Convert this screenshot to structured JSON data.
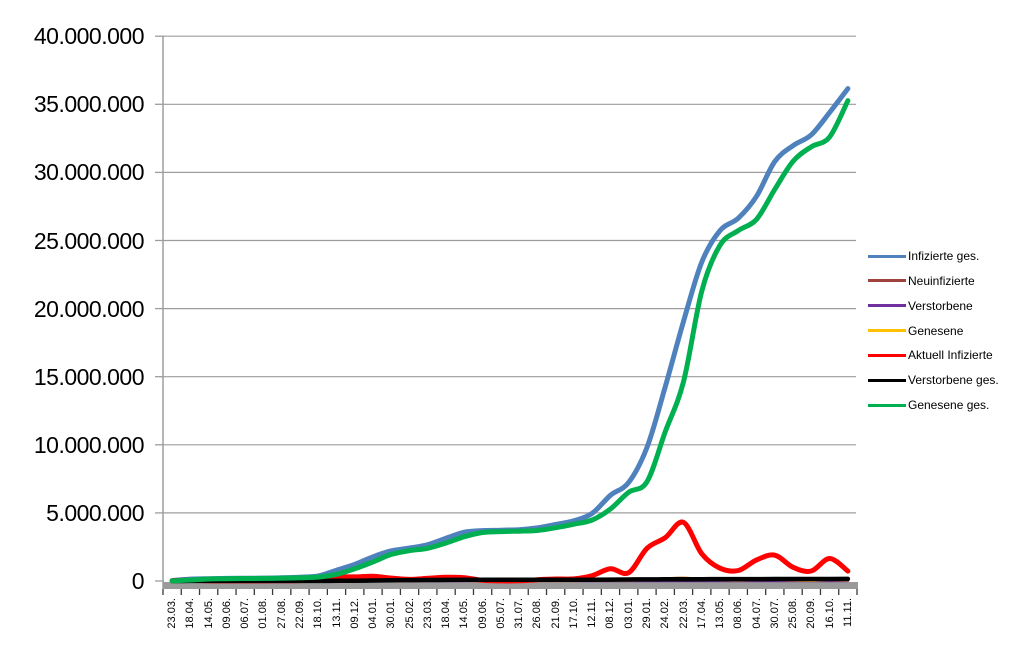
{
  "chart_data": {
    "type": "line",
    "title": "",
    "grid": true,
    "legend_position": "right",
    "categories": [
      "23.03.",
      "18.04.",
      "14.05.",
      "09.06.",
      "06.07.",
      "01.08.",
      "27.08.",
      "22.09.",
      "18.10.",
      "13.11.",
      "09.12.",
      "04.01.",
      "30.01.",
      "25.02.",
      "23.03.",
      "18.04.",
      "14.05.",
      "09.06.",
      "05.07.",
      "31.07.",
      "26.08.",
      "21.09.",
      "17.10.",
      "12.11.",
      "08.12.",
      "03.01.",
      "29.01.",
      "24.02.",
      "22.03.",
      "17.04.",
      "13.05.",
      "08.06.",
      "04.07.",
      "30.07.",
      "25.08.",
      "20.09.",
      "16.10.",
      "11.11."
    ],
    "y_axis": {
      "min": 0,
      "max": 40000000,
      "step": 5000000,
      "tick_labels": [
        "40.000.000",
        "35.000.000",
        "30.000.000",
        "25.000.000",
        "20.000.000",
        "15.000.000",
        "10.000.000",
        "5.000.000",
        "0"
      ]
    },
    "series": [
      {
        "name": "Infizierte ges.",
        "color": "#4F81BD",
        "stroke_width": 5,
        "values": [
          30000,
          140000,
          170000,
          190000,
          200000,
          210000,
          240000,
          280000,
          370000,
          790000,
          1220000,
          1780000,
          2220000,
          2420000,
          2670000,
          3140000,
          3580000,
          3700000,
          3730000,
          3770000,
          3900000,
          4150000,
          4420000,
          4970000,
          6290000,
          7240000,
          9810000,
          14250000,
          19060000,
          23420000,
          25730000,
          26640000,
          28250000,
          30800000,
          31970000,
          32760000,
          34400000,
          36150000
        ]
      },
      {
        "name": "Neuinfizierte",
        "color": "#A0423D",
        "stroke_width": 2.5,
        "values": [
          4000,
          2500,
          900,
          400,
          400,
          700,
          1400,
          1800,
          7000,
          18000,
          22000,
          18000,
          12000,
          8000,
          16000,
          21000,
          9000,
          2000,
          600,
          1500,
          9000,
          8000,
          9000,
          37000,
          50000,
          30000,
          120000,
          180000,
          230000,
          110000,
          60000,
          40000,
          90000,
          80000,
          40000,
          40000,
          90000,
          40000
        ]
      },
      {
        "name": "Verstorbene",
        "color": "#7030A0",
        "stroke_width": 2.5,
        "values": [
          50,
          200,
          100,
          40,
          10,
          10,
          10,
          10,
          30,
          150,
          400,
          700,
          800,
          400,
          200,
          250,
          200,
          100,
          30,
          20,
          30,
          60,
          80,
          150,
          400,
          350,
          180,
          200,
          300,
          250,
          150,
          100,
          100,
          150,
          150,
          100,
          150,
          150
        ]
      },
      {
        "name": "Genesene",
        "color": "#FFC000",
        "stroke_width": 2.5,
        "values": [
          1000,
          3500,
          2000,
          700,
          400,
          700,
          1200,
          1500,
          4000,
          12000,
          20000,
          20000,
          14000,
          9000,
          13000,
          19000,
          13000,
          4000,
          800,
          1200,
          6000,
          8000,
          8000,
          25000,
          45000,
          35000,
          90000,
          160000,
          220000,
          160000,
          70000,
          45000,
          80000,
          90000,
          50000,
          40000,
          80000,
          50000
        ]
      },
      {
        "name": "Aktuell Infizierte",
        "color": "#FF0000",
        "stroke_width": 5,
        "values": [
          20000,
          66000,
          12000,
          11000,
          6000,
          11000,
          21000,
          31000,
          70000,
          288000,
          300000,
          345000,
          214000,
          121000,
          195000,
          270000,
          244000,
          51000,
          9000,
          18000,
          98000,
          147000,
          155000,
          393000,
          896000,
          608000,
          2402000,
          3178000,
          4303000,
          1997000,
          943000,
          770000,
          1548000,
          1896000,
          1004000,
          732000,
          1650000,
          725000
        ]
      },
      {
        "name": "Verstorbene ges.",
        "color": "#000000",
        "stroke_width": 4.5,
        "values": [
          200,
          4000,
          8000,
          8700,
          9000,
          9100,
          9300,
          9400,
          9800,
          12000,
          20000,
          35000,
          56000,
          69000,
          75000,
          80000,
          86000,
          89000,
          91000,
          92000,
          92200,
          93000,
          94600,
          97000,
          104000,
          112000,
          118000,
          122000,
          127000,
          133000,
          137000,
          140000,
          142000,
          144000,
          146000,
          148000,
          150000,
          155000
        ]
      },
      {
        "name": "Genesene ges.",
        "color": "#00B050",
        "stroke_width": 5,
        "values": [
          10000,
          70000,
          150000,
          170000,
          185000,
          190000,
          210000,
          240000,
          290000,
          490000,
          900000,
          1400000,
          1950000,
          2230000,
          2400000,
          2790000,
          3250000,
          3560000,
          3630000,
          3660000,
          3710000,
          3910000,
          4170000,
          4480000,
          5290000,
          6520000,
          7290000,
          10950000,
          14630000,
          21290000,
          24650000,
          25730000,
          26560000,
          28760000,
          30820000,
          31880000,
          32600000,
          35270000
        ]
      }
    ],
    "axis_colors": {
      "gridline": "#9D9D9D",
      "axis_line": "#9D9D9D",
      "baseline_band": "#9A9A9A",
      "tick": "#3A3A3A"
    }
  }
}
